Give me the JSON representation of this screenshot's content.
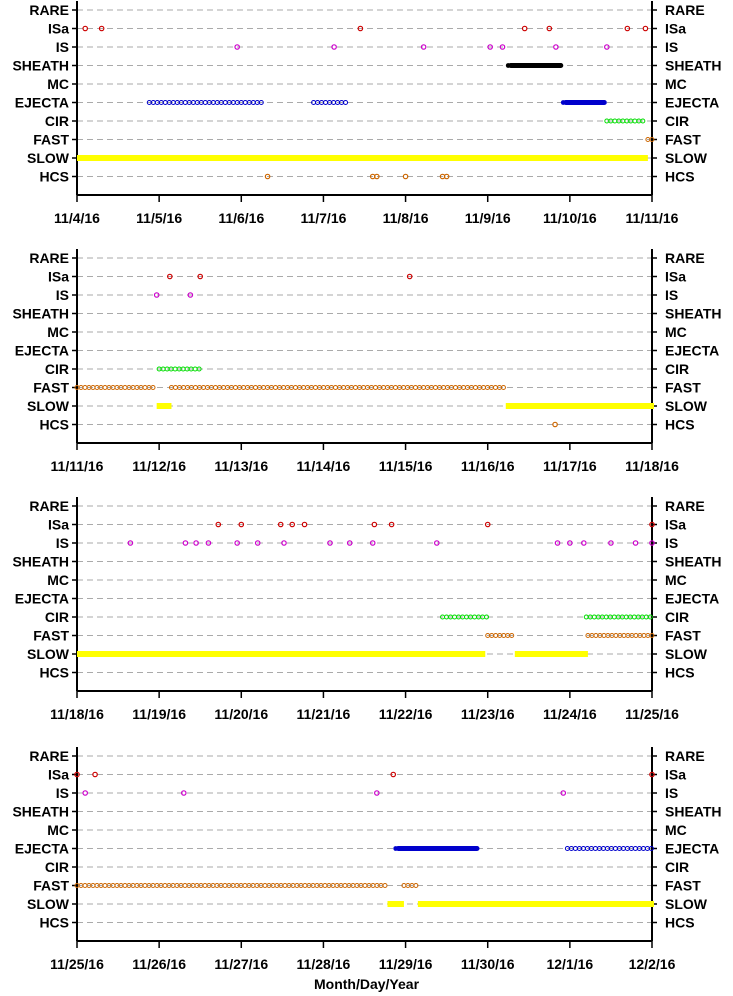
{
  "colors": {
    "ISa": "#cc0000",
    "IS": "#cc00cc",
    "SHEATH": "#000000",
    "EJECTA": "#0000cc",
    "CIR": "#00dd00",
    "FAST": "#cc6600",
    "SLOW": "#ffff00",
    "HCS": "#cc6600",
    "grid": "#aaaaaa",
    "axis": "#000000"
  },
  "x_axis_label": "Month/Day/Year",
  "chart_data": [
    {
      "type": "scatter",
      "categories": [
        "RARE",
        "ISa",
        "IS",
        "SHEATH",
        "MC",
        "EJECTA",
        "CIR",
        "FAST",
        "SLOW",
        "HCS"
      ],
      "xlim": [
        "11/4/16",
        "11/11/16"
      ],
      "x_ticks": [
        "11/4/16",
        "11/5/16",
        "11/6/16",
        "11/7/16",
        "11/8/16",
        "11/9/16",
        "11/10/16",
        "11/11/16"
      ],
      "events": [
        {
          "cat": "ISa",
          "times": [
            0.1,
            0.3,
            3.45,
            5.45,
            5.75,
            6.7,
            6.92
          ]
        },
        {
          "cat": "IS",
          "times": [
            1.95,
            3.13,
            4.22,
            5.03,
            5.18,
            5.83,
            6.45
          ]
        },
        {
          "cat": "HCS",
          "times": [
            2.32,
            3.6,
            3.65,
            4.0,
            4.45,
            4.5
          ]
        }
      ],
      "intervals": [
        {
          "cat": "SHEATH",
          "start": 5.25,
          "end": 5.92,
          "style": "filled"
        },
        {
          "cat": "EJECTA",
          "start": 0.88,
          "end": 2.28,
          "style": "open"
        },
        {
          "cat": "EJECTA",
          "start": 2.88,
          "end": 3.28,
          "style": "open"
        },
        {
          "cat": "EJECTA",
          "start": 5.92,
          "end": 6.45,
          "style": "filled"
        },
        {
          "cat": "CIR",
          "start": 6.45,
          "end": 6.9,
          "style": "open"
        },
        {
          "cat": "FAST",
          "start": 6.95,
          "end": 7.2,
          "style": "open"
        },
        {
          "cat": "SLOW",
          "start": 0.0,
          "end": 6.95,
          "style": "filled"
        }
      ]
    },
    {
      "type": "scatter",
      "categories": [
        "RARE",
        "ISa",
        "IS",
        "SHEATH",
        "MC",
        "EJECTA",
        "CIR",
        "FAST",
        "SLOW",
        "HCS"
      ],
      "xlim": [
        "11/11/16",
        "11/18/16"
      ],
      "x_ticks": [
        "11/11/16",
        "11/12/16",
        "11/13/16",
        "11/14/16",
        "11/15/16",
        "11/16/16",
        "11/17/16",
        "11/18/16"
      ],
      "events": [
        {
          "cat": "ISa",
          "times": [
            1.13,
            1.5,
            4.05
          ]
        },
        {
          "cat": "IS",
          "times": [
            0.97,
            1.38
          ]
        },
        {
          "cat": "HCS",
          "times": [
            5.82
          ]
        }
      ],
      "intervals": [
        {
          "cat": "CIR",
          "start": 1.0,
          "end": 1.5,
          "style": "open"
        },
        {
          "cat": "FAST",
          "start": 0.0,
          "end": 0.97,
          "style": "open"
        },
        {
          "cat": "FAST",
          "start": 1.15,
          "end": 5.22,
          "style": "open"
        },
        {
          "cat": "SLOW",
          "start": 0.97,
          "end": 1.15,
          "style": "filled"
        },
        {
          "cat": "SLOW",
          "start": 5.22,
          "end": 7.15,
          "style": "filled"
        }
      ]
    },
    {
      "type": "scatter",
      "categories": [
        "RARE",
        "ISa",
        "IS",
        "SHEATH",
        "MC",
        "EJECTA",
        "CIR",
        "FAST",
        "SLOW",
        "HCS"
      ],
      "xlim": [
        "11/18/16",
        "11/25/16"
      ],
      "x_ticks": [
        "11/18/16",
        "11/19/16",
        "11/20/16",
        "11/21/16",
        "11/22/16",
        "11/23/16",
        "11/24/16",
        "11/25/16"
      ],
      "events": [
        {
          "cat": "ISa",
          "times": [
            1.72,
            2.0,
            2.48,
            2.62,
            2.77,
            3.62,
            3.83,
            5.0,
            7.0
          ]
        },
        {
          "cat": "IS",
          "times": [
            0.65,
            1.32,
            1.45,
            1.6,
            1.95,
            2.2,
            2.52,
            3.08,
            3.32,
            3.6,
            4.38,
            5.85,
            6.0,
            6.17,
            6.5,
            6.8,
            7.0
          ]
        }
      ],
      "intervals": [
        {
          "cat": "CIR",
          "start": 4.45,
          "end": 5.0,
          "style": "open"
        },
        {
          "cat": "CIR",
          "start": 6.2,
          "end": 7.0,
          "style": "open"
        },
        {
          "cat": "FAST",
          "start": 5.0,
          "end": 5.33,
          "style": "open"
        },
        {
          "cat": "FAST",
          "start": 6.22,
          "end": 7.15,
          "style": "open"
        },
        {
          "cat": "SLOW",
          "start": 0.0,
          "end": 4.97,
          "style": "filled"
        },
        {
          "cat": "SLOW",
          "start": 5.33,
          "end": 6.22,
          "style": "filled"
        }
      ]
    },
    {
      "type": "scatter",
      "categories": [
        "RARE",
        "ISa",
        "IS",
        "SHEATH",
        "MC",
        "EJECTA",
        "CIR",
        "FAST",
        "SLOW",
        "HCS"
      ],
      "xlim": [
        "11/25/16",
        "12/2/16"
      ],
      "x_ticks": [
        "11/25/16",
        "11/26/16",
        "11/27/16",
        "11/28/16",
        "11/29/16",
        "11/30/16",
        "12/1/16",
        "12/2/16"
      ],
      "events": [
        {
          "cat": "ISa",
          "times": [
            0.0,
            0.22,
            3.85,
            7.0
          ]
        },
        {
          "cat": "IS",
          "times": [
            0.1,
            1.3,
            3.65,
            5.92
          ]
        }
      ],
      "intervals": [
        {
          "cat": "EJECTA",
          "start": 3.88,
          "end": 4.9,
          "style": "filled"
        },
        {
          "cat": "EJECTA",
          "start": 5.97,
          "end": 7.0,
          "style": "open"
        },
        {
          "cat": "FAST",
          "start": 0.0,
          "end": 3.78,
          "style": "open"
        },
        {
          "cat": "FAST",
          "start": 3.98,
          "end": 4.15,
          "style": "open"
        },
        {
          "cat": "SLOW",
          "start": 3.78,
          "end": 3.98,
          "style": "filled"
        },
        {
          "cat": "SLOW",
          "start": 4.15,
          "end": 7.15,
          "style": "filled"
        }
      ]
    }
  ]
}
